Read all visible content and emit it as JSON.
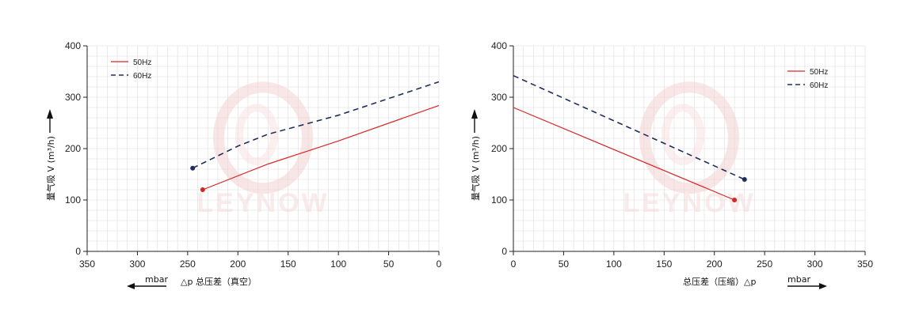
{
  "charts": [
    {
      "x_label": "△p 总压差（真空）",
      "y_label": "量气吸 V (m³/h)",
      "unit": "mbar",
      "watermark": "LEYNOW"
    },
    {
      "x_label": "总压差（压缩）△p",
      "y_label": "量气吸 V (m³/h)",
      "unit": "mbar",
      "watermark": "LEYNOW"
    }
  ],
  "colors": {
    "hz50": "#d62728",
    "hz60": "#1f2d5c",
    "grid": "#dcdcdc",
    "axis": "#222222"
  },
  "chart_data": [
    {
      "type": "line",
      "x_reversed": true,
      "xlim": [
        0,
        350
      ],
      "ylim": [
        0,
        400
      ],
      "x_ticks": [
        350,
        300,
        250,
        200,
        150,
        100,
        50,
        0
      ],
      "y_ticks": [
        0,
        100,
        200,
        300,
        400
      ],
      "grid": true,
      "legend_position": "top-left",
      "series": [
        {
          "name": "50Hz",
          "style": "solid",
          "points": [
            [
              235,
              120
            ],
            [
              170,
              170
            ],
            [
              100,
              215
            ],
            [
              0,
              284
            ]
          ]
        },
        {
          "name": "60Hz",
          "style": "dashed",
          "points": [
            [
              245,
              162
            ],
            [
              200,
              205
            ],
            [
              170,
              228
            ],
            [
              100,
              265
            ],
            [
              0,
              330
            ]
          ]
        }
      ]
    },
    {
      "type": "line",
      "x_reversed": false,
      "xlim": [
        0,
        350
      ],
      "ylim": [
        0,
        400
      ],
      "x_ticks": [
        0,
        50,
        100,
        150,
        200,
        250,
        300,
        350
      ],
      "y_ticks": [
        0,
        100,
        200,
        300,
        400
      ],
      "grid": true,
      "legend_position": "top-right",
      "series": [
        {
          "name": "50Hz",
          "style": "solid",
          "points": [
            [
              0,
              280
            ],
            [
              220,
              100
            ]
          ]
        },
        {
          "name": "60Hz",
          "style": "dashed",
          "points": [
            [
              0,
              342
            ],
            [
              230,
              140
            ]
          ]
        }
      ]
    }
  ]
}
